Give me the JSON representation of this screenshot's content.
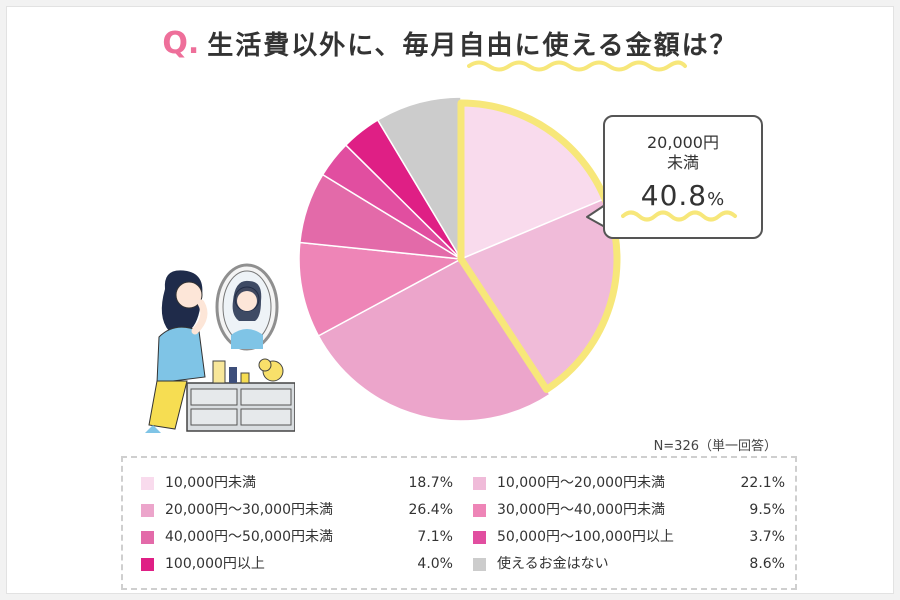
{
  "title": {
    "q_mark": "Q.",
    "text": "生活費以外に、毎月自由に使える金額は？"
  },
  "note": "N=326（単一回答）",
  "callout": {
    "line1": "20,000円",
    "line2": "未満",
    "value": "40.8",
    "unit": "%"
  },
  "chart_data": {
    "type": "pie",
    "title": "生活費以外に、毎月自由に使える金額は？",
    "start": "12 o'clock",
    "direction": "clockwise",
    "highlighted_group": [
      "10,000円未満",
      "10,000円～20,000円未満"
    ],
    "slices": [
      {
        "label": "10,000円未満",
        "value": 18.7,
        "value_label": "18.7%",
        "color": "#f9dbed"
      },
      {
        "label": "10,000円～20,000円未満",
        "value": 22.1,
        "value_label": "22.1%",
        "color": "#f0bbd9"
      },
      {
        "label": "20,000円～30,000円未満",
        "value": 26.4,
        "value_label": "26.4%",
        "color": "#eca5cb"
      },
      {
        "label": "30,000円～40,000円未満",
        "value": 9.5,
        "value_label": "9.5%",
        "color": "#ee85b7"
      },
      {
        "label": "40,000円～50,000円未満",
        "value": 7.1,
        "value_label": "7.1%",
        "color": "#e36aa9"
      },
      {
        "label": "50,000円～100,000円以上",
        "value": 3.7,
        "value_label": "3.7%",
        "color": "#e14ea0"
      },
      {
        "label": "100,000円以上",
        "value": 4.0,
        "value_label": "4.0%",
        "color": "#df1f85"
      },
      {
        "label": "使えるお金はない",
        "value": 8.6,
        "value_label": "8.6%",
        "color": "#cccccc"
      }
    ]
  },
  "legend_layout": {
    "left": [
      0,
      2,
      4,
      6
    ],
    "right": [
      1,
      3,
      5,
      7
    ]
  },
  "colors": {
    "accent_pink": "#ee6f9a",
    "highlight_yellow": "#f7e77a"
  }
}
